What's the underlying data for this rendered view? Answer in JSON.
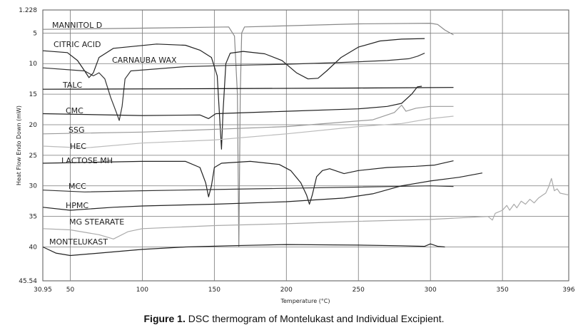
{
  "chart_data": {
    "type": "line",
    "xlabel": "Temperature (°C)",
    "ylabel": "Heat Flow Endo Down (mW)",
    "xlim": [
      30.95,
      396
    ],
    "ylim": [
      45.54,
      1.228
    ],
    "x_ticks": [
      {
        "value": 30.95,
        "label": "30.95"
      },
      {
        "value": 50,
        "label": "50"
      },
      {
        "value": 100,
        "label": "100"
      },
      {
        "value": 150,
        "label": "150"
      },
      {
        "value": 200,
        "label": "200"
      },
      {
        "value": 250,
        "label": "250"
      },
      {
        "value": 300,
        "label": "300"
      },
      {
        "value": 350,
        "label": "350"
      },
      {
        "value": 396,
        "label": "396"
      }
    ],
    "y_ticks": [
      {
        "value": 1.228,
        "label": "1.228"
      },
      {
        "value": 5,
        "label": "5"
      },
      {
        "value": 10,
        "label": "10"
      },
      {
        "value": 15,
        "label": "15"
      },
      {
        "value": 20,
        "label": "20"
      },
      {
        "value": 25,
        "label": "25"
      },
      {
        "value": 30,
        "label": "30"
      },
      {
        "value": 35,
        "label": "35"
      },
      {
        "value": 40,
        "label": "40"
      },
      {
        "value": 45.54,
        "label": "45.54"
      }
    ],
    "grid": true,
    "series": [
      {
        "name": "MANNITOL D",
        "color": "#888888",
        "points": [
          [
            31,
            4.4
          ],
          [
            100,
            4.2
          ],
          [
            160,
            4.0
          ],
          [
            164,
            5.5
          ],
          [
            166,
            15
          ],
          [
            167,
            40
          ],
          [
            168,
            15
          ],
          [
            169,
            5
          ],
          [
            171,
            4.0
          ],
          [
            250,
            3.5
          ],
          [
            300,
            3.4
          ],
          [
            305,
            3.6
          ],
          [
            310,
            4.5
          ],
          [
            316,
            5.3
          ]
        ]
      },
      {
        "name": "CITRIC ACID",
        "color": "#222222",
        "points": [
          [
            31,
            7.9
          ],
          [
            48,
            8.2
          ],
          [
            55,
            9.5
          ],
          [
            60,
            11.2
          ],
          [
            63,
            12.3
          ],
          [
            66,
            11.5
          ],
          [
            70,
            9.0
          ],
          [
            80,
            7.5
          ],
          [
            110,
            6.8
          ],
          [
            130,
            7.0
          ],
          [
            140,
            7.8
          ],
          [
            148,
            9.0
          ],
          [
            152,
            12
          ],
          [
            154,
            20
          ],
          [
            155,
            24
          ],
          [
            156,
            18
          ],
          [
            158,
            10
          ],
          [
            161,
            8.3
          ],
          [
            170,
            8.0
          ],
          [
            185,
            8.4
          ],
          [
            197,
            9.5
          ],
          [
            207,
            11.5
          ],
          [
            215,
            12.5
          ],
          [
            222,
            12.4
          ],
          [
            228,
            11.2
          ],
          [
            238,
            9.0
          ],
          [
            250,
            7.3
          ],
          [
            265,
            6.3
          ],
          [
            280,
            6.0
          ],
          [
            296,
            5.9
          ]
        ]
      },
      {
        "name": "CARNAUBA WAX",
        "color": "#333333",
        "points": [
          [
            31,
            10.7
          ],
          [
            60,
            11.2
          ],
          [
            66,
            12.0
          ],
          [
            70,
            11.5
          ],
          [
            74,
            12.5
          ],
          [
            78,
            15.5
          ],
          [
            82,
            18
          ],
          [
            84,
            19.3
          ],
          [
            86,
            17
          ],
          [
            88,
            12.5
          ],
          [
            92,
            11.2
          ],
          [
            130,
            10.5
          ],
          [
            160,
            10.3
          ],
          [
            200,
            10.1
          ],
          [
            240,
            9.8
          ],
          [
            270,
            9.5
          ],
          [
            285,
            9.2
          ],
          [
            291,
            8.8
          ],
          [
            296,
            8.3
          ]
        ]
      },
      {
        "name": "TALC",
        "color": "#111111",
        "points": [
          [
            31,
            14.2
          ],
          [
            150,
            14.1
          ],
          [
            250,
            14.0
          ],
          [
            316,
            13.9
          ]
        ]
      },
      {
        "name": "CMC",
        "color": "#222222",
        "points": [
          [
            31,
            18.2
          ],
          [
            100,
            18.5
          ],
          [
            140,
            18.4
          ],
          [
            146,
            19.0
          ],
          [
            151,
            18.2
          ],
          [
            200,
            17.8
          ],
          [
            250,
            17.4
          ],
          [
            270,
            17.0
          ],
          [
            280,
            16.5
          ],
          [
            287,
            15.0
          ],
          [
            291,
            13.8
          ],
          [
            294,
            13.7
          ]
        ]
      },
      {
        "name": "SSG",
        "color": "#9a9a9a",
        "points": [
          [
            31,
            21.5
          ],
          [
            100,
            21.2
          ],
          [
            200,
            20.3
          ],
          [
            260,
            19.2
          ],
          [
            275,
            18.0
          ],
          [
            280,
            16.8
          ],
          [
            283,
            17.8
          ],
          [
            290,
            17.3
          ],
          [
            300,
            17.0
          ],
          [
            316,
            17.0
          ]
        ]
      },
      {
        "name": "HEC",
        "color": "#bbbbbb",
        "points": [
          [
            31,
            23.5
          ],
          [
            60,
            23.8
          ],
          [
            100,
            23.0
          ],
          [
            150,
            22.5
          ],
          [
            200,
            21.5
          ],
          [
            250,
            20.3
          ],
          [
            280,
            19.8
          ],
          [
            300,
            19.0
          ],
          [
            316,
            18.6
          ]
        ]
      },
      {
        "name": "LACTOSE MH",
        "color": "#222222",
        "points": [
          [
            31,
            26.3
          ],
          [
            100,
            26.0
          ],
          [
            130,
            26.0
          ],
          [
            140,
            27.0
          ],
          [
            144,
            29.5
          ],
          [
            146,
            31.8
          ],
          [
            148,
            30.0
          ],
          [
            150,
            27.0
          ],
          [
            155,
            26.3
          ],
          [
            175,
            26.0
          ],
          [
            195,
            26.5
          ],
          [
            203,
            27.5
          ],
          [
            210,
            29.5
          ],
          [
            214,
            31.5
          ],
          [
            216,
            33.0
          ],
          [
            218,
            31.5
          ],
          [
            221,
            28.5
          ],
          [
            225,
            27.5
          ],
          [
            230,
            27.2
          ],
          [
            240,
            28.0
          ],
          [
            250,
            27.5
          ],
          [
            270,
            27.0
          ],
          [
            290,
            26.8
          ],
          [
            303,
            26.6
          ],
          [
            316,
            25.9
          ]
        ]
      },
      {
        "name": "MCC",
        "color": "#333333",
        "points": [
          [
            31,
            30.7
          ],
          [
            60,
            31.0
          ],
          [
            100,
            30.8
          ],
          [
            150,
            30.6
          ],
          [
            200,
            30.4
          ],
          [
            250,
            30.2
          ],
          [
            300,
            30.0
          ],
          [
            316,
            30.1
          ]
        ]
      },
      {
        "name": "HPMC",
        "color": "#222222",
        "points": [
          [
            31,
            33.5
          ],
          [
            50,
            34.0
          ],
          [
            80,
            33.5
          ],
          [
            100,
            33.3
          ],
          [
            150,
            33.0
          ],
          [
            200,
            32.6
          ],
          [
            240,
            32.0
          ],
          [
            260,
            31.3
          ],
          [
            280,
            30.0
          ],
          [
            300,
            29.2
          ],
          [
            320,
            28.6
          ],
          [
            336,
            27.9
          ]
        ]
      },
      {
        "name": "MG STEARATE",
        "color": "#aaaaaa",
        "points": [
          [
            31,
            37.0
          ],
          [
            50,
            37.2
          ],
          [
            70,
            38.0
          ],
          [
            80,
            38.7
          ],
          [
            90,
            37.5
          ],
          [
            100,
            37.0
          ],
          [
            150,
            36.5
          ],
          [
            200,
            36.2
          ],
          [
            250,
            35.8
          ],
          [
            300,
            35.5
          ],
          [
            340,
            35.0
          ],
          [
            343,
            35.6
          ],
          [
            345,
            34.5
          ],
          [
            350,
            34.0
          ],
          [
            353,
            33.2
          ],
          [
            355,
            34.0
          ],
          [
            358,
            33.0
          ],
          [
            360,
            33.6
          ],
          [
            363,
            32.5
          ],
          [
            366,
            33.0
          ],
          [
            369,
            32.2
          ],
          [
            372,
            32.8
          ],
          [
            375,
            32.0
          ],
          [
            378,
            31.5
          ],
          [
            380,
            31.2
          ],
          [
            382,
            30.2
          ],
          [
            384,
            28.8
          ],
          [
            386,
            30.8
          ],
          [
            388,
            30.5
          ],
          [
            390,
            31.2
          ],
          [
            396,
            31.5
          ]
        ]
      },
      {
        "name": "MONTELUKAST",
        "color": "#222222",
        "points": [
          [
            31,
            40.0
          ],
          [
            40,
            41.0
          ],
          [
            50,
            41.4
          ],
          [
            70,
            41.0
          ],
          [
            100,
            40.4
          ],
          [
            130,
            40.0
          ],
          [
            160,
            39.8
          ],
          [
            200,
            39.6
          ],
          [
            250,
            39.7
          ],
          [
            280,
            39.8
          ],
          [
            296,
            39.9
          ],
          [
            300,
            39.5
          ],
          [
            305,
            39.9
          ],
          [
            310,
            40.0
          ]
        ]
      }
    ]
  },
  "caption": {
    "label": "Figure 1.",
    "text": " DSC thermogram of Montelukast and Individual Excipient."
  }
}
